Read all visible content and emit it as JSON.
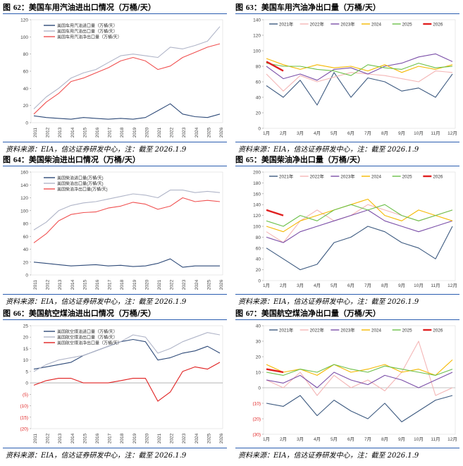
{
  "source_text": "资料来源：EIA，信达证券研发中心，注：截至 2026.1.9",
  "panels": [
    {
      "id": "p62",
      "num": "62",
      "title": "美国车用汽油进出口情况（万桶/天）",
      "chart_data": {
        "type": "line",
        "x_ticks": [
          "2011",
          "2012",
          "2013",
          "2014",
          "2015",
          "2016",
          "2017",
          "2018",
          "2019",
          "2020",
          "2021",
          "2022",
          "2023",
          "2024",
          "2025",
          "2026"
        ],
        "ylim": [
          0,
          120
        ],
        "y_ticks": [
          "0",
          "20",
          "40",
          "60",
          "80",
          "100",
          "120"
        ],
        "legend_position": "top-left",
        "series": [
          {
            "name": "美国车用汽油进口量（万桶/天）",
            "color": "#2e4a78",
            "values": [
              8,
              6,
              5,
              4,
              6,
              5,
              4,
              5,
              4,
              6,
              14,
              22,
              10,
              7,
              6,
              10
            ]
          },
          {
            "name": "美国车用汽油出口量（万桶/天）",
            "color": "#b0b5c8",
            "values": [
              16,
              30,
              40,
              52,
              58,
              62,
              70,
              78,
              80,
              78,
              76,
              88,
              86,
              90,
              95,
              112
            ]
          },
          {
            "name": "美国车用汽油净出口量（万桶/天）",
            "color": "#f05050",
            "values": [
              10,
              24,
              34,
              48,
              52,
              58,
              64,
              72,
              76,
              72,
              62,
              66,
              76,
              82,
              88,
              92
            ]
          }
        ]
      }
    },
    {
      "id": "p63",
      "num": "63",
      "title": "美国车用汽油净出口量（万桶/天）",
      "chart_data": {
        "type": "line",
        "x_ticks": [
          "1月",
          "2月",
          "3月",
          "4月",
          "5月",
          "6月",
          "7月",
          "8月",
          "9月",
          "10月",
          "11月",
          "12月"
        ],
        "ylim": [
          0,
          140
        ],
        "y_ticks": [
          "0",
          "20",
          "40",
          "60",
          "80",
          "100",
          "120",
          "140"
        ],
        "legend_position": "top",
        "series": [
          {
            "name": "2021年",
            "color": "#3d5a80",
            "values": [
              55,
              40,
              62,
              30,
              72,
              40,
              65,
              60,
              48,
              52,
              40,
              70
            ]
          },
          {
            "name": "2022年",
            "color": "#f4b6b6",
            "values": [
              70,
              48,
              68,
              60,
              66,
              72,
              70,
              68,
              64,
              60,
              74,
              72
            ]
          },
          {
            "name": "2023年",
            "color": "#7b4fa8",
            "values": [
              80,
              64,
              70,
              62,
              76,
              78,
              70,
              80,
              84,
              92,
              96,
              86
            ]
          },
          {
            "name": "2024",
            "color": "#f5b800",
            "values": [
              90,
              82,
              76,
              82,
              78,
              80,
              74,
              82,
              72,
              80,
              76,
              82
            ]
          },
          {
            "name": "2025",
            "color": "#6cc04a",
            "values": [
              84,
              80,
              80,
              76,
              74,
              68,
              82,
              78,
              76,
              84,
              78,
              80
            ]
          },
          {
            "name": "2026",
            "color": "#e02020",
            "values": [
              86,
              74
            ]
          }
        ]
      }
    },
    {
      "id": "p64",
      "num": "64",
      "title": "美国柴油进出口情况（万桶/天）",
      "chart_data": {
        "type": "line",
        "x_ticks": [
          "2011",
          "2012",
          "2013",
          "2014",
          "2015",
          "2016",
          "2017",
          "2018",
          "2019",
          "2020",
          "2021",
          "2022",
          "2023",
          "2024",
          "2025",
          "2026"
        ],
        "ylim": [
          0,
          160
        ],
        "y_ticks": [
          "0",
          "20",
          "40",
          "60",
          "80",
          "100",
          "120",
          "140",
          "160"
        ],
        "legend_position": "top-left",
        "series": [
          {
            "name": "美国柴油进口量(万桶/天)",
            "color": "#2e4a78",
            "values": [
              20,
              18,
              16,
              14,
              15,
              16,
              14,
              15,
              13,
              14,
              18,
              25,
              12,
              14,
              14,
              14
            ]
          },
          {
            "name": "美国柴油出口量(万桶/天)",
            "color": "#b0b5c8",
            "values": [
              70,
              82,
              100,
              108,
              112,
              114,
              118,
              122,
              126,
              124,
              120,
              132,
              132,
              128,
              130,
              128
            ]
          },
          {
            "name": "美国柴油净出口量(万桶/天)",
            "color": "#f05050",
            "values": [
              50,
              64,
              84,
              94,
              97,
              98,
              104,
              107,
              113,
              110,
              102,
              107,
              120,
              114,
              116,
              114
            ]
          }
        ]
      }
    },
    {
      "id": "p65",
      "num": "65",
      "title": "美国柴油净出口量（万桶/天）",
      "chart_data": {
        "type": "line",
        "x_ticks": [
          "1月",
          "2月",
          "3月",
          "4月",
          "5月",
          "6月",
          "7月",
          "8月",
          "9月",
          "10月",
          "11月",
          "12月"
        ],
        "ylim": [
          0,
          200
        ],
        "y_ticks": [
          "0",
          "20",
          "40",
          "60",
          "80",
          "100",
          "120",
          "140",
          "160",
          "180",
          "200"
        ],
        "legend_position": "top",
        "series": [
          {
            "name": "2021年",
            "color": "#3d5a80",
            "values": [
              60,
              40,
              20,
              30,
              70,
              80,
              100,
              90,
              70,
              60,
              40,
              100
            ]
          },
          {
            "name": "2022年",
            "color": "#f4b6b6",
            "values": [
              90,
              70,
              110,
              130,
              110,
              120,
              140,
              130,
              120,
              110,
              120,
              130
            ]
          },
          {
            "name": "2023年",
            "color": "#7b4fa8",
            "values": [
              80,
              70,
              90,
              100,
              110,
              120,
              130,
              110,
              100,
              90,
              100,
              110
            ]
          },
          {
            "name": "2024",
            "color": "#f5b800",
            "values": [
              100,
              90,
              110,
              120,
              130,
              140,
              150,
              120,
              110,
              130,
              120,
              110
            ]
          },
          {
            "name": "2025",
            "color": "#6cc04a",
            "values": [
              110,
              100,
              120,
              110,
              130,
              140,
              130,
              140,
              120,
              110,
              120,
              130
            ]
          },
          {
            "name": "2026",
            "color": "#e02020",
            "values": [
              130,
              120
            ]
          }
        ]
      }
    },
    {
      "id": "p66",
      "num": "66",
      "title": "美国航空煤油进出口情况（万桶/天）",
      "chart_data": {
        "type": "line",
        "x_ticks": [
          "2011",
          "2012",
          "2013",
          "2014",
          "2015",
          "2016",
          "2017",
          "2018",
          "2019",
          "2020",
          "2021",
          "2022",
          "2023",
          "2024",
          "2025",
          "2026"
        ],
        "ylim": [
          -20,
          25
        ],
        "y_ticks": [
          "(20)",
          "(15)",
          "(10)",
          "(5)",
          "0",
          "5",
          "10",
          "15",
          "20",
          "25"
        ],
        "legend_position": "top-left",
        "series": [
          {
            "name": "美国航空煤油进口量（万桶/天）",
            "color": "#2e4a78",
            "values": [
              6,
              7,
              8,
              9,
              12,
              14,
              16,
              18,
              19,
              18,
              10,
              11,
              13,
              14,
              16,
              13
            ]
          },
          {
            "name": "美国航空煤油出口量（万桶/天）",
            "color": "#b0b5c8",
            "values": [
              5,
              8,
              10,
              11,
              12,
              14,
              16,
              18,
              21,
              20,
              13,
              15,
              18,
              20,
              22,
              21
            ]
          },
          {
            "name": "美国航空煤油净出口量（万桶/天）",
            "color": "#e02020",
            "values": [
              -1,
              1,
              2,
              2,
              0,
              0,
              0,
              1,
              2,
              2,
              -8,
              -4,
              5,
              7,
              6,
              9
            ]
          }
        ]
      }
    },
    {
      "id": "p67",
      "num": "67",
      "title": "美国航空煤油净出口量（万桶/天）",
      "chart_data": {
        "type": "line",
        "x_ticks": [
          "1月",
          "2月",
          "3月",
          "4月",
          "5月",
          "6月",
          "7月",
          "8月",
          "9月",
          "10月",
          "11月",
          "12月"
        ],
        "ylim": [
          -30,
          40
        ],
        "y_ticks": [
          "(30)",
          "(20)",
          "(10)",
          "0",
          "10",
          "20",
          "30",
          "40"
        ],
        "legend_position": "top",
        "series": [
          {
            "name": "2021年",
            "color": "#3d5a80",
            "values": [
              -10,
              -12,
              -5,
              -18,
              -8,
              -15,
              -20,
              -10,
              -22,
              -15,
              -8,
              -5
            ]
          },
          {
            "name": "2022年",
            "color": "#f4b6b6",
            "values": [
              5,
              0,
              10,
              -5,
              8,
              0,
              5,
              -2,
              10,
              30,
              -5,
              0
            ]
          },
          {
            "name": "2023年",
            "color": "#7b4fa8",
            "values": [
              5,
              3,
              8,
              0,
              10,
              5,
              2,
              8,
              5,
              0,
              5,
              10
            ]
          },
          {
            "name": "2024",
            "color": "#f5b800",
            "values": [
              15,
              10,
              12,
              8,
              15,
              10,
              12,
              15,
              10,
              12,
              8,
              18
            ]
          },
          {
            "name": "2025",
            "color": "#6cc04a",
            "values": [
              10,
              8,
              12,
              10,
              15,
              12,
              10,
              14,
              12,
              10,
              8,
              12
            ]
          },
          {
            "name": "2026",
            "color": "#e02020",
            "values": [
              12,
              10
            ]
          }
        ]
      }
    }
  ]
}
